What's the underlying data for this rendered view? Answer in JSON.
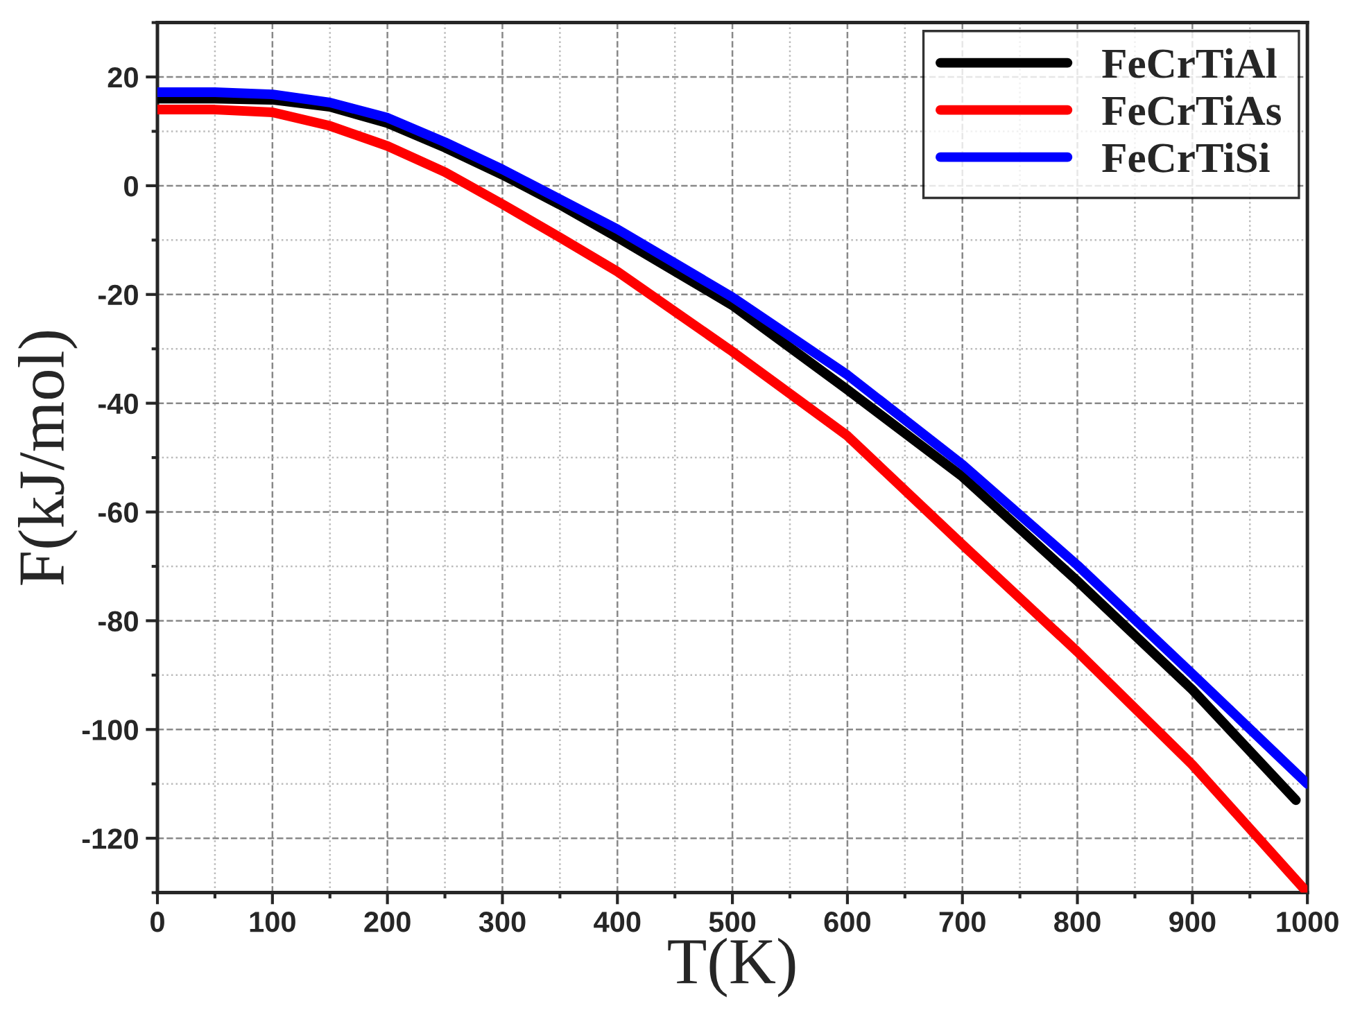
{
  "chart_data": {
    "type": "line",
    "xlabel": "T(K)",
    "ylabel": "F(kJ/mol)",
    "series": [
      {
        "name": "FeCrTiAl",
        "color": "#000000",
        "x": [
          0,
          50,
          100,
          150,
          200,
          250,
          300,
          350,
          400,
          500,
          600,
          700,
          800,
          900,
          990
        ],
        "values": [
          16,
          16,
          15.8,
          14.5,
          11.5,
          7,
          2,
          -3.5,
          -9.5,
          -22,
          -37.5,
          -53.5,
          -72.7,
          -92.7,
          -113
        ]
      },
      {
        "name": "FeCrTiAs",
        "color": "#ff0000",
        "x": [
          0,
          50,
          100,
          150,
          200,
          250,
          300,
          350,
          400,
          500,
          600,
          700,
          800,
          900,
          1000
        ],
        "values": [
          14,
          14,
          13.5,
          11,
          7.3,
          2.5,
          -3.4,
          -9.5,
          -15.8,
          -30.5,
          -46,
          -66,
          -85.7,
          -106.5,
          -130
        ]
      },
      {
        "name": "FeCrTiSi",
        "color": "#0000ff",
        "x": [
          0,
          50,
          100,
          150,
          200,
          250,
          300,
          350,
          400,
          500,
          600,
          700,
          800,
          900,
          1000
        ],
        "values": [
          17.2,
          17.2,
          16.8,
          15.3,
          12.5,
          8,
          3,
          -2.5,
          -8,
          -20.5,
          -34.8,
          -51.3,
          -69.8,
          -89.8,
          -110
        ]
      }
    ],
    "xlim": [
      0,
      1000
    ],
    "xticks": [
      0,
      100,
      200,
      300,
      400,
      500,
      600,
      700,
      800,
      900,
      1000
    ],
    "ylim": [
      -130,
      30
    ],
    "yticks": [
      -120,
      -100,
      -80,
      -60,
      -40,
      -20,
      0,
      20
    ],
    "grid": true,
    "legend": "top right",
    "marker": "none",
    "line_style": "solid"
  }
}
